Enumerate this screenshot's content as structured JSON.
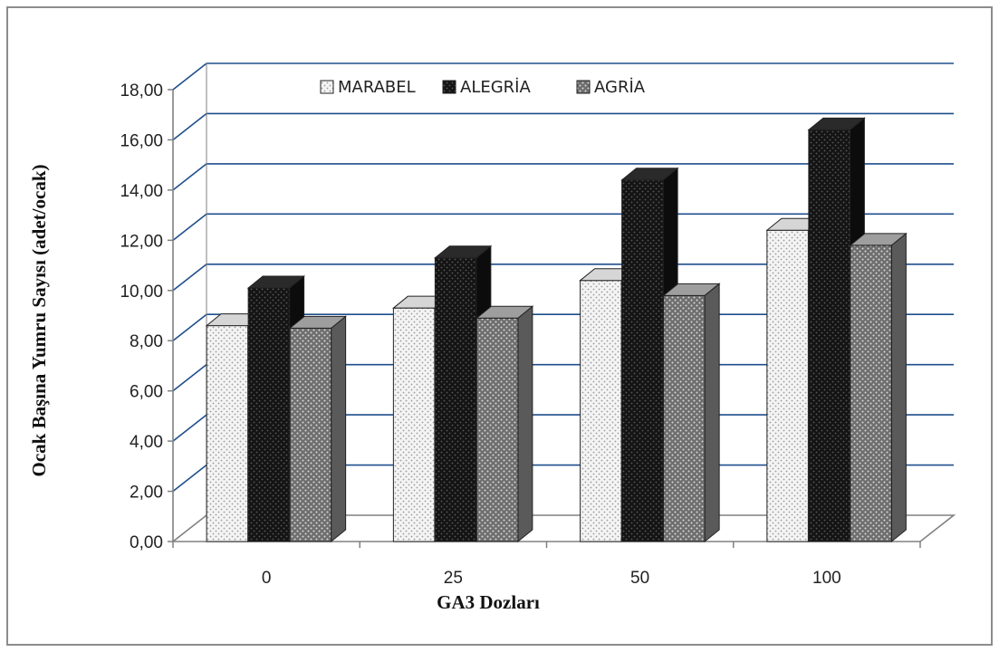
{
  "chart_data": {
    "type": "bar",
    "title": "",
    "xlabel": "GA3 Dozları",
    "ylabel": "Ocak Başına Yumru  Sayısı (adet/ocak)",
    "categories": [
      "0",
      "25",
      "50",
      "100"
    ],
    "ylim": [
      0,
      18
    ],
    "yticks": [
      "0,00",
      "2,00",
      "4,00",
      "6,00",
      "8,00",
      "10,00",
      "12,00",
      "14,00",
      "16,00",
      "18,00"
    ],
    "legend_position": "top",
    "grid": true,
    "series": [
      {
        "name": "MARABEL",
        "values": [
          8.6,
          9.3,
          10.4,
          12.4
        ],
        "color": "#efefef",
        "pattern": "dotted-light"
      },
      {
        "name": "ALEGRİA",
        "values": [
          10.1,
          11.3,
          14.4,
          16.4
        ],
        "color": "#1a1a1a",
        "pattern": "dotted-dark"
      },
      {
        "name": "AGRİA",
        "values": [
          8.5,
          8.9,
          9.8,
          11.8
        ],
        "color": "#8a8a8a",
        "pattern": "dotted-medium"
      }
    ],
    "colors": {
      "grid": "#1f4e8c",
      "axis": "#808080"
    }
  }
}
